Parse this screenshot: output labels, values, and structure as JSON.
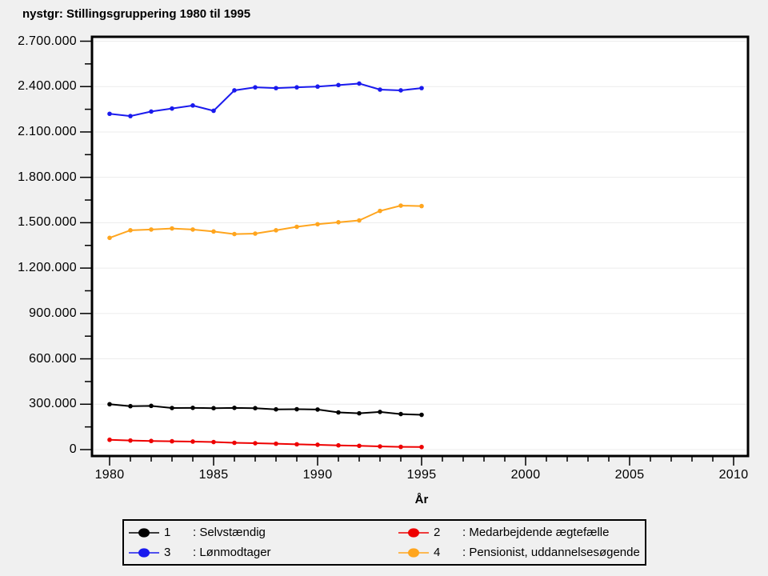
{
  "title": "nystgr: Stillingsgruppering 1980 til 1995",
  "chart_data": {
    "type": "line",
    "title": "nystgr: Stillingsgruppering 1980 til 1995",
    "xlabel": "År",
    "ylabel": "",
    "xlim": [
      1980,
      2010
    ],
    "ylim": [
      0,
      2700000
    ],
    "grid": "horizontal-major",
    "legend_position": "bottom",
    "x": [
      1980,
      1981,
      1982,
      1983,
      1984,
      1985,
      1986,
      1987,
      1988,
      1989,
      1990,
      1991,
      1992,
      1993,
      1994,
      1995
    ],
    "series": [
      {
        "name": "Selvstændig",
        "legend_number": "1",
        "color": "#000000",
        "values": [
          300000,
          287000,
          289000,
          275000,
          276000,
          274000,
          276000,
          274000,
          266000,
          267000,
          265000,
          246000,
          240000,
          249000,
          235000,
          230000
        ]
      },
      {
        "name": "Medarbejdende ægtefælle",
        "legend_number": "2",
        "color": "#ee0000",
        "values": [
          65000,
          60000,
          57000,
          55000,
          53000,
          50000,
          45000,
          42000,
          39000,
          35000,
          32000,
          28000,
          25000,
          21000,
          18000,
          17000
        ]
      },
      {
        "name": "Lønmodtager",
        "legend_number": "3",
        "color": "#1a1aee",
        "values": [
          2220000,
          2205000,
          2235000,
          2255000,
          2275000,
          2240000,
          2375000,
          2395000,
          2390000,
          2395000,
          2400000,
          2410000,
          2420000,
          2380000,
          2375000,
          2390000
        ]
      },
      {
        "name": "Pensionist, uddannelsesøgende",
        "legend_number": "4",
        "color": "#ffa51e",
        "values": [
          1400000,
          1450000,
          1455000,
          1462000,
          1455000,
          1442000,
          1425000,
          1428000,
          1450000,
          1473000,
          1490000,
          1503000,
          1515000,
          1578000,
          1613000,
          1610000
        ]
      }
    ],
    "y_ticks": {
      "values": [
        0,
        300000,
        600000,
        900000,
        1200000,
        1500000,
        1800000,
        2100000,
        2400000,
        2700000
      ],
      "labels": [
        "0",
        "300.000",
        "600.000",
        "900.000",
        "1.200.000",
        "1.500.000",
        "1.800.000",
        "2.100.000",
        "2.400.000",
        "2.700.000"
      ]
    },
    "x_ticks": {
      "major": [
        1980,
        1985,
        1990,
        1995,
        2000,
        2005,
        2010
      ],
      "labels": [
        "1980",
        "1985",
        "1990",
        "1995",
        "2000",
        "2005",
        "2010"
      ],
      "minor_step": 1
    }
  },
  "legend": {
    "items": [
      {
        "number": "1",
        "label": ": Selvstændig",
        "color": "#000000"
      },
      {
        "number": "2",
        "label": ": Medarbejdende ægtefælle",
        "color": "#ee0000"
      },
      {
        "number": "3",
        "label": ": Lønmodtager",
        "color": "#1a1aee"
      },
      {
        "number": "4",
        "label": ": Pensionist, uddannelsesøgende",
        "color": "#ffa51e"
      }
    ]
  }
}
